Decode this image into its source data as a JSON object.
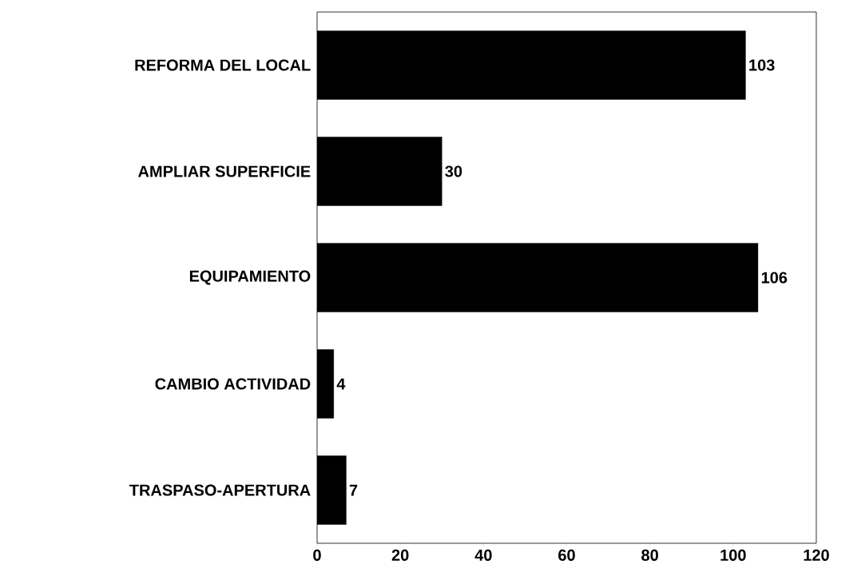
{
  "chart_data": {
    "type": "bar",
    "orientation": "horizontal",
    "categories": [
      "REFORMA DEL LOCAL",
      "AMPLIAR SUPERFICIE",
      "EQUIPAMIENTO",
      "CAMBIO ACTIVIDAD",
      "TRASPASO-APERTURA"
    ],
    "values": [
      103,
      30,
      106,
      4,
      7
    ],
    "color": "#000000",
    "data_labels": true,
    "xlim": [
      0,
      120
    ],
    "xticks": [
      0,
      20,
      40,
      60,
      80,
      100,
      120
    ]
  }
}
